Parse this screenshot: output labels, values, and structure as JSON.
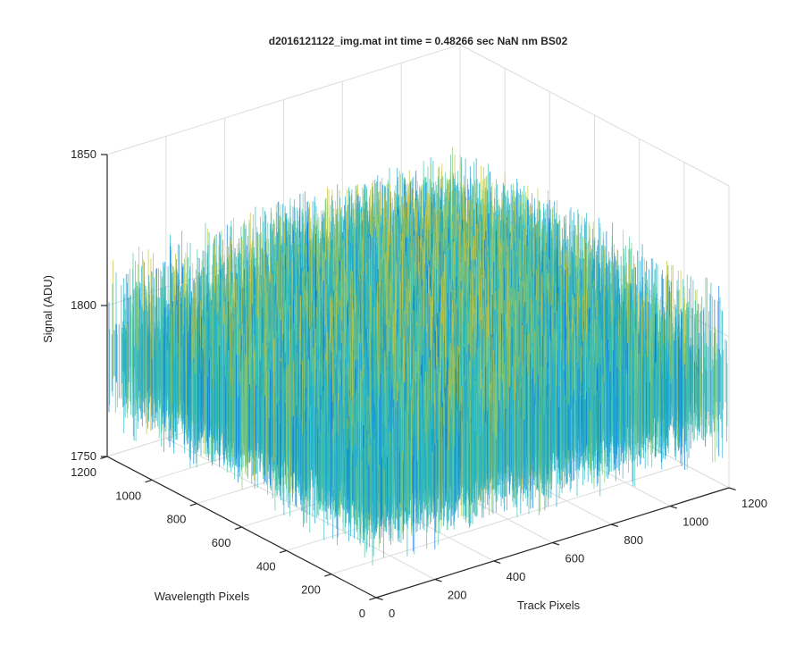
{
  "chart_data": {
    "type": "surface",
    "title": "d2016121122_img.mat int time = 0.48266 sec  NaN nm BS02",
    "xlabel": "Track Pixels",
    "ylabel": "Wavelength Pixels",
    "zlabel": "Signal (ADU)",
    "xlim": [
      0,
      1200
    ],
    "ylim": [
      0,
      1200
    ],
    "zlim": [
      1750,
      1850
    ],
    "xticks": [
      "0",
      "200",
      "400",
      "600",
      "800",
      "1000",
      "1200"
    ],
    "yticks": [
      "0",
      "200",
      "400",
      "600",
      "800",
      "1000",
      "1200"
    ],
    "zticks": [
      "1750",
      "1800",
      "1850"
    ],
    "grid": true,
    "colormap": "parula",
    "colors": [
      "#0a72d8",
      "#1e9ed6",
      "#26b8c4",
      "#4cc3a0",
      "#8ec86a",
      "#c7c33e"
    ],
    "surface": {
      "baseline_signal": 1790,
      "noise_min": 1760,
      "noise_max": 1830,
      "x_range": [
        0,
        1200
      ],
      "y_range": [
        0,
        1200
      ]
    }
  }
}
